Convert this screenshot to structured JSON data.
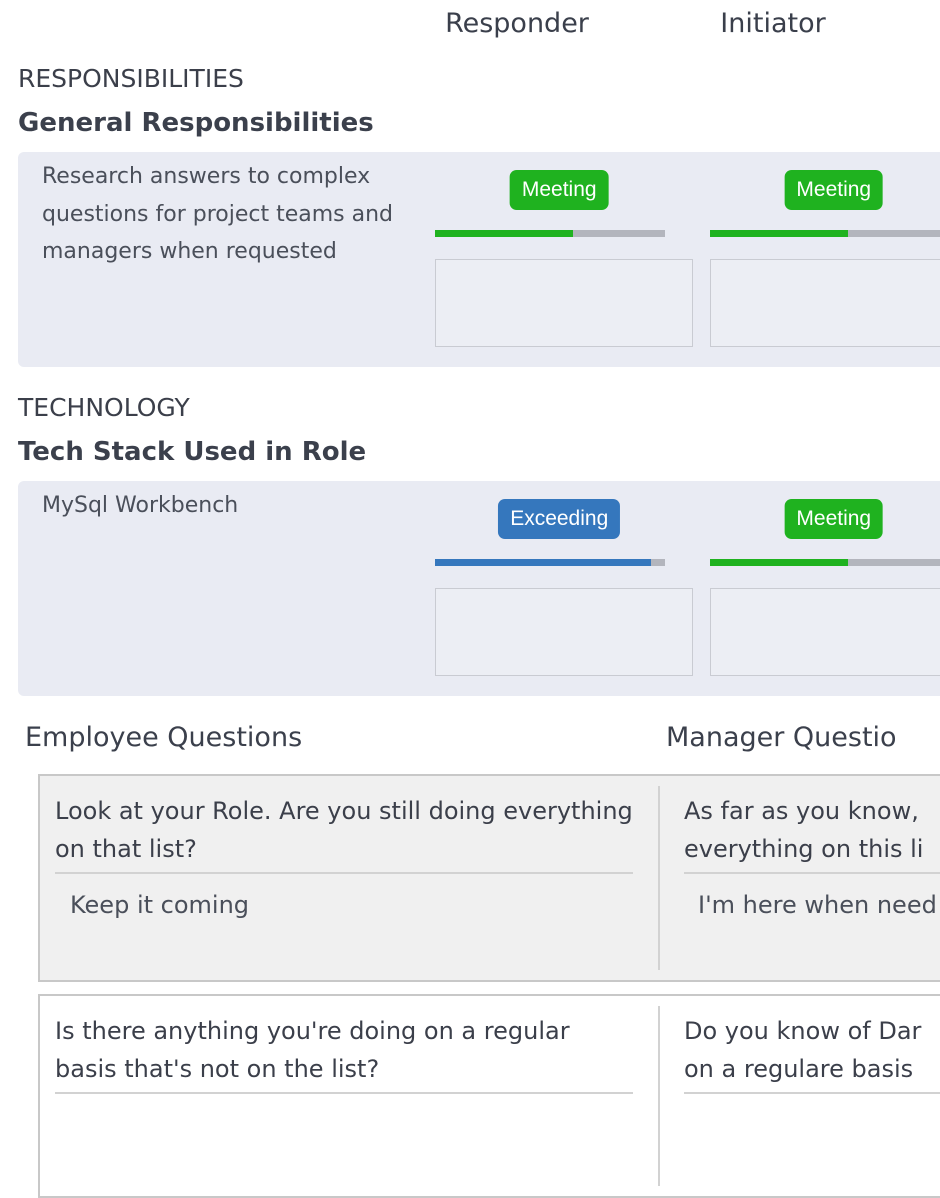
{
  "header": {
    "columns": [
      "Responder",
      "Initiator"
    ]
  },
  "sections": [
    {
      "heading": "RESPONSIBILITIES",
      "subheading": "General Responsibilities",
      "items": [
        {
          "text": "Research answers to complex questions for project teams and managers when requested",
          "ratings": [
            {
              "status": "Meeting",
              "color": "#1fb21f",
              "progress": 60
            },
            {
              "status": "Meeting",
              "color": "#1fb21f",
              "progress": 60
            }
          ]
        }
      ]
    },
    {
      "heading": "TECHNOLOGY",
      "subheading": "Tech Stack Used in Role",
      "items": [
        {
          "text": "MySql Workbench",
          "ratings": [
            {
              "status": "Exceeding",
              "color": "#3577bd",
              "progress": 94
            },
            {
              "status": "Meeting",
              "color": "#1fb21f",
              "progress": 60
            }
          ]
        }
      ]
    }
  ],
  "questions": {
    "employee_title": "Employee Questions",
    "manager_title": "Manager Questio",
    "rows": [
      {
        "employee_question": "Look at your Role. Are you still doing everything on that list?",
        "employee_answer": "Keep it coming",
        "manager_question": [
          "As far as you know,",
          "everything on this li"
        ],
        "manager_answer": "I'm here when need"
      },
      {
        "employee_question": "Is there anything you're doing on a regular basis that's not on the list?",
        "manager_question": [
          "Do you know of Dar",
          "on a regulare basis"
        ]
      }
    ]
  }
}
